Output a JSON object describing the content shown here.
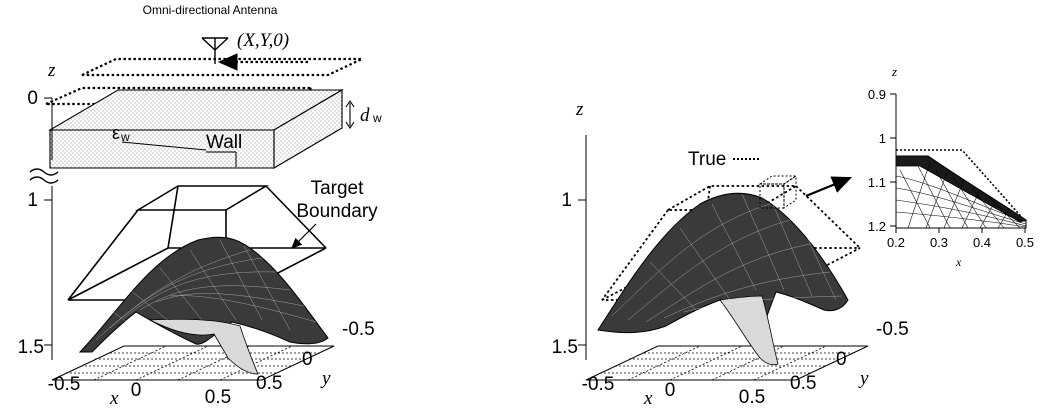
{
  "left_panel": {
    "antenna_label": "Omni-directional Antenna",
    "antenna_coord": "(X,Y,0)",
    "z_axis_label": "z",
    "z_tick_top": "0",
    "wall_thickness_symbol": "d",
    "wall_thickness_subscript": "w",
    "permittivity_symbol": "ε",
    "permittivity_subscript": "w",
    "wall_label": "Wall",
    "target_label_line1": "Target",
    "target_label_line2": "Boundary",
    "z_tick_mid": "1",
    "z_tick_bottom": "1.5",
    "x_axis_label": "x",
    "x_ticks": [
      "-0.5",
      "0",
      "0.5"
    ],
    "y_axis_label": "y",
    "y_ticks": [
      "-0.5",
      "0",
      "0.5"
    ]
  },
  "right_panel": {
    "z_axis_label": "z",
    "legend_label": "True",
    "z_tick_mid": "1",
    "z_tick_bottom": "1.5",
    "x_axis_label": "x",
    "x_ticks": [
      "-0.5",
      "0",
      "0.5"
    ],
    "y_axis_label": "y",
    "y_ticks": [
      "-0.5",
      "0",
      "0.5"
    ]
  },
  "inset": {
    "z_axis_label": "z",
    "z_ticks": [
      "0.9",
      "1",
      "1.1",
      "1.2"
    ],
    "x_ticks": [
      "0.2",
      "0.3",
      "0.4",
      "0.5"
    ],
    "x_axis_label": "x"
  }
}
